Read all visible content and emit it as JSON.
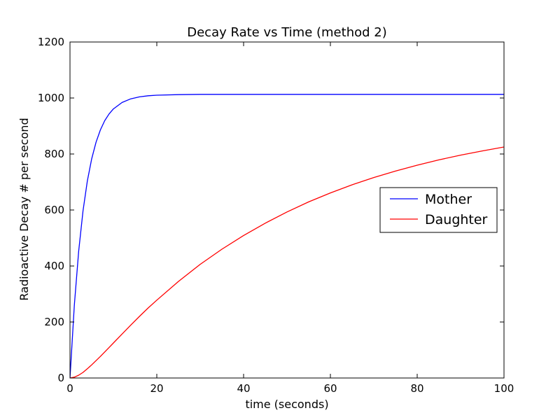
{
  "chart_data": {
    "type": "line",
    "title": "Decay Rate vs Time (method 2)",
    "xlabel": "time (seconds)",
    "ylabel": "Radioactive Decay # per second",
    "xlim": [
      0,
      100
    ],
    "ylim": [
      0,
      1200
    ],
    "xticks": [
      "0",
      "20",
      "40",
      "60",
      "80",
      "100"
    ],
    "yticks": [
      "0",
      "200",
      "400",
      "600",
      "800",
      "1000",
      "1200"
    ],
    "grid": false,
    "legend_position": "center-right",
    "x": [
      0,
      1,
      2,
      3,
      4,
      5,
      6,
      7,
      8,
      9,
      10,
      12,
      14,
      16,
      18,
      20,
      25,
      30,
      35,
      40,
      45,
      50,
      55,
      60,
      65,
      70,
      75,
      80,
      85,
      90,
      95,
      100
    ],
    "series": [
      {
        "name": "Mother",
        "color": "#0000ff",
        "values": [
          0,
          260,
          453,
          597,
          704,
          783,
          842,
          886,
          919,
          943,
          961,
          984,
          997,
          1004,
          1008,
          1010,
          1012,
          1013,
          1013,
          1013,
          1013,
          1013,
          1013,
          1013,
          1013,
          1013,
          1013,
          1013,
          1013,
          1013,
          1013,
          1013
        ]
      },
      {
        "name": "Daughter",
        "color": "#ff0000",
        "values": [
          0,
          3,
          10,
          20,
          33,
          47,
          62,
          77,
          93,
          109,
          125,
          157,
          189,
          220,
          250,
          278,
          345,
          406,
          460,
          509,
          553,
          593,
          629,
          661,
          690,
          716,
          739,
          760,
          779,
          796,
          811,
          825
        ]
      }
    ]
  }
}
